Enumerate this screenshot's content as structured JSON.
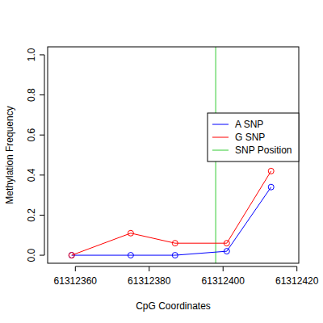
{
  "chart_data": {
    "type": "line",
    "x_label": "CpG Coordinates",
    "y_label": "Methylation Frequency",
    "x": [
      61312359,
      61312375,
      61312387,
      61312401,
      61312413
    ],
    "series": [
      {
        "name": "A SNP",
        "color": "#0000ff",
        "marker": "circle",
        "line_style": "solid",
        "values": [
          0,
          0,
          0,
          0.02,
          0.34
        ]
      },
      {
        "name": "G SNP",
        "color": "#ff0000",
        "marker": "circle",
        "line_style": "solid",
        "values": [
          0,
          0.11,
          0.06,
          0.06,
          0.42
        ]
      }
    ],
    "vlines": [
      {
        "name": "SNP Position",
        "color": "#33cc33",
        "x": 61312398
      }
    ],
    "xlim": [
      61312352.5,
      61312420.5
    ],
    "xticks": [
      61312360,
      61312380,
      61312400,
      61312420
    ],
    "ylim": [
      -0.04,
      1.04
    ],
    "yticks": [
      {
        "value": 0,
        "label": "0.0"
      },
      {
        "value": 0.2,
        "label": "0.2"
      },
      {
        "value": 0.4,
        "label": "0.4"
      },
      {
        "value": 0.6,
        "label": "0.6"
      },
      {
        "value": 0.8,
        "label": "0.8"
      },
      {
        "value": 1,
        "label": "1.0"
      }
    ],
    "grid": false,
    "legend": "right"
  }
}
